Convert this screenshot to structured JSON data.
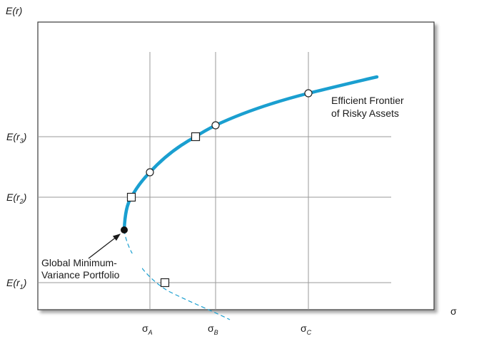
{
  "y_axis_label": "E(r)",
  "x_axis_label": "σ",
  "y_ticks": [
    {
      "base": "E(r",
      "sub": "3",
      "close": ")"
    },
    {
      "base": "E(r",
      "sub": "2",
      "close": ")"
    },
    {
      "base": "E(r",
      "sub": "1",
      "close": ")"
    }
  ],
  "x_ticks": [
    {
      "base": "σ",
      "sub": "A"
    },
    {
      "base": "σ",
      "sub": "B"
    },
    {
      "base": "σ",
      "sub": "C"
    }
  ],
  "frontier_label": [
    "Efficient Frontier",
    "of Risky Assets"
  ],
  "gmv_label": [
    "Global Minimum-",
    "Variance Portfolio"
  ],
  "colors": {
    "frontier": "#1a9fd0",
    "grid": "#9a9a9a",
    "frame": "#3a3a3a"
  }
}
